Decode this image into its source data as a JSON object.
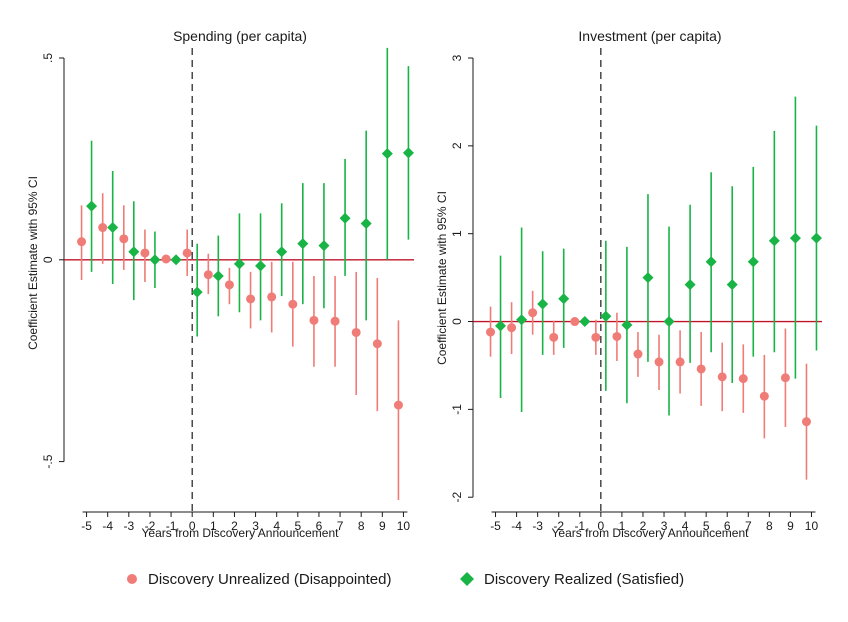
{
  "colors": {
    "unrealized": "#F07C77",
    "realized": "#18B446",
    "zero_line": "#C0142A",
    "axis": "#1a1a1a"
  },
  "legend": {
    "unrealized_label": "Discovery Unrealized (Disappointed)",
    "realized_label": "Discovery Realized (Satisfied)"
  },
  "chart_data": [
    {
      "type": "scatter",
      "title": "Spending (per capita)",
      "xlabel": "Years from Discovery Announcement",
      "ylabel": "Coefficient Estimate with 95% CI",
      "xlim": [
        -5.5,
        10.5
      ],
      "ylim": [
        -0.61,
        0.5
      ],
      "x_ticks": [
        -5,
        -4,
        -3,
        -2,
        -1,
        0,
        1,
        2,
        3,
        4,
        5,
        6,
        7,
        8,
        9,
        10
      ],
      "y_ticks": [
        -0.5,
        0,
        0.5
      ],
      "y_tick_labels": [
        "-.5",
        "0",
        ".5"
      ],
      "y_tick_rotated": true,
      "event_line_x": 0,
      "series": [
        {
          "name": "Discovery Unrealized (Disappointed)",
          "marker": "circle",
          "color": "#F07C77",
          "x": [
            -5,
            -4,
            -3,
            -2,
            -1,
            0,
            1,
            2,
            3,
            4,
            5,
            6,
            7,
            8,
            9,
            10
          ],
          "y": [
            0.045,
            0.08,
            0.052,
            0.017,
            0.002,
            0.017,
            -0.037,
            -0.062,
            -0.097,
            -0.092,
            -0.11,
            -0.15,
            -0.152,
            -0.18,
            -0.208,
            -0.36
          ],
          "lo": [
            -0.05,
            -0.01,
            -0.025,
            -0.055,
            -0.005,
            -0.04,
            -0.085,
            -0.11,
            -0.17,
            -0.18,
            -0.215,
            -0.265,
            -0.265,
            -0.335,
            -0.375,
            -0.595
          ],
          "hi": [
            0.135,
            0.165,
            0.135,
            0.075,
            0.008,
            0.075,
            0.015,
            -0.02,
            -0.03,
            -0.005,
            -0.005,
            -0.04,
            -0.04,
            -0.03,
            -0.045,
            -0.15
          ]
        },
        {
          "name": "Discovery Realized (Satisfied)",
          "marker": "diamond",
          "color": "#18B446",
          "x": [
            -5,
            -4,
            -3,
            -2,
            -1,
            0,
            1,
            2,
            3,
            4,
            5,
            6,
            7,
            8,
            9,
            10
          ],
          "y": [
            0.133,
            0.08,
            0.02,
            0.0,
            0.0,
            -0.08,
            -0.04,
            -0.01,
            -0.015,
            0.02,
            0.04,
            0.035,
            0.103,
            0.09,
            0.263,
            0.265
          ],
          "lo": [
            -0.03,
            -0.06,
            -0.1,
            -0.07,
            -0.005,
            -0.19,
            -0.14,
            -0.13,
            -0.15,
            -0.09,
            -0.11,
            -0.12,
            -0.04,
            -0.15,
            0.0,
            0.05
          ],
          "hi": [
            0.295,
            0.22,
            0.145,
            0.07,
            0.005,
            0.04,
            0.06,
            0.115,
            0.115,
            0.14,
            0.19,
            0.19,
            0.25,
            0.32,
            0.525,
            0.48
          ]
        }
      ]
    },
    {
      "type": "scatter",
      "title": "Investment (per capita)",
      "xlabel": "Years from Discovery Announcement",
      "ylabel": "Coefficient Estimate with 95% CI",
      "xlim": [
        -5.5,
        10.5
      ],
      "ylim": [
        -2.1,
        3.0
      ],
      "x_ticks": [
        -5,
        -4,
        -3,
        -2,
        -1,
        0,
        1,
        2,
        3,
        4,
        5,
        6,
        7,
        8,
        9,
        10
      ],
      "y_ticks": [
        -2,
        -1,
        0,
        1,
        2,
        3
      ],
      "y_tick_labels": [
        "-2",
        "-1",
        "0",
        "1",
        "2",
        "3"
      ],
      "y_tick_rotated": true,
      "event_line_x": 0,
      "series": [
        {
          "name": "Discovery Unrealized (Disappointed)",
          "marker": "circle",
          "color": "#F07C77",
          "x": [
            -5,
            -4,
            -3,
            -2,
            -1,
            0,
            1,
            2,
            3,
            4,
            5,
            6,
            7,
            8,
            9,
            10
          ],
          "y": [
            -0.12,
            -0.07,
            0.1,
            -0.18,
            0.0,
            -0.18,
            -0.17,
            -0.37,
            -0.46,
            -0.46,
            -0.54,
            -0.63,
            -0.65,
            -0.85,
            -0.64,
            -1.14
          ],
          "lo": [
            -0.4,
            -0.37,
            -0.15,
            -0.38,
            -0.04,
            -0.38,
            -0.45,
            -0.63,
            -0.78,
            -0.82,
            -0.96,
            -1.02,
            -1.04,
            -1.33,
            -1.2,
            -1.8
          ],
          "hi": [
            0.17,
            0.22,
            0.35,
            0.01,
            0.04,
            0.02,
            0.1,
            -0.12,
            -0.15,
            -0.1,
            -0.12,
            -0.24,
            -0.26,
            -0.38,
            -0.08,
            -0.48
          ]
        },
        {
          "name": "Discovery Realized (Satisfied)",
          "marker": "diamond",
          "color": "#18B446",
          "x": [
            -5,
            -4,
            -3,
            -2,
            -1,
            0,
            1,
            2,
            3,
            4,
            5,
            6,
            7,
            8,
            9,
            10
          ],
          "y": [
            -0.05,
            0.02,
            0.2,
            0.26,
            0.0,
            0.06,
            -0.04,
            0.5,
            0.0,
            0.42,
            0.68,
            0.42,
            0.68,
            0.92,
            0.95,
            0.95
          ],
          "lo": [
            -0.87,
            -1.03,
            -0.38,
            -0.3,
            -0.04,
            -0.79,
            -0.93,
            -0.46,
            -1.07,
            -0.47,
            -0.35,
            -0.7,
            -0.4,
            -0.35,
            -0.65,
            -0.33
          ],
          "hi": [
            0.75,
            1.07,
            0.8,
            0.83,
            0.04,
            0.92,
            0.85,
            1.45,
            1.08,
            1.33,
            1.7,
            1.54,
            1.76,
            2.17,
            2.56,
            2.23
          ]
        }
      ]
    }
  ]
}
